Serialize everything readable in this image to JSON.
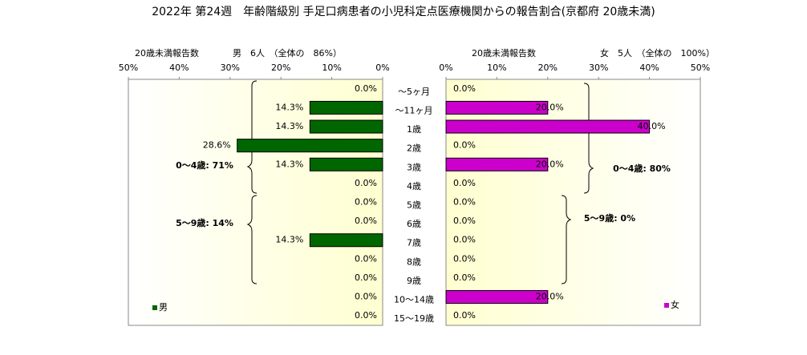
{
  "chart_data": {
    "type": "butterfly",
    "title": "2022年 第24週　年齢階級別 手足口病患者の小児科定点医療機関からの報告割合(京都府 20歳未満)",
    "axis_label": "20歳未満報告数",
    "categories": [
      "～5ヶ月",
      "～11ヶ月",
      "1歳",
      "2歳",
      "3歳",
      "4歳",
      "5歳",
      "6歳",
      "7歳",
      "8歳",
      "9歳",
      "10～14歳",
      "15～19歳"
    ],
    "xlim": [
      0,
      50
    ],
    "xticks": [
      {
        "value": 0,
        "label": "0%"
      },
      {
        "value": 10,
        "label": "10%"
      },
      {
        "value": 20,
        "label": "20%"
      },
      {
        "value": 30,
        "label": "30%"
      },
      {
        "value": 40,
        "label": "40%"
      },
      {
        "value": 50,
        "label": "50%"
      }
    ],
    "series": [
      {
        "name": "男",
        "header": "男　6人　（全体の　86%）",
        "color": "#006600",
        "values": [
          0,
          14.3,
          14.3,
          28.6,
          14.3,
          0,
          0,
          0,
          14.3,
          0,
          0,
          0,
          0
        ],
        "value_labels": [
          "0.0%",
          "14.3%",
          "14.3%",
          "28.6%",
          "14.3%",
          "0.0%",
          "0.0%",
          "0.0%",
          "14.3%",
          "0.0%",
          "0.0%",
          "0.0%",
          "0.0%"
        ],
        "annotations": [
          "0～4歳: 71%",
          "5～9歳: 14%"
        ]
      },
      {
        "name": "女",
        "header": "女　5人　（全体の　100%）",
        "color": "#cc00cc",
        "values": [
          0,
          20,
          40,
          0,
          20,
          0,
          0,
          0,
          0,
          0,
          0,
          20,
          0
        ],
        "value_labels": [
          "0.0%",
          "20.0%",
          "40.0%",
          "0.0%",
          "20.0%",
          "0.0%",
          "0.0%",
          "0.0%",
          "0.0%",
          "0.0%",
          "0.0%",
          "20.0%",
          "0.0%"
        ],
        "annotations": [
          "0～4歳: 80%",
          "5～9歳: 0%"
        ]
      }
    ]
  }
}
